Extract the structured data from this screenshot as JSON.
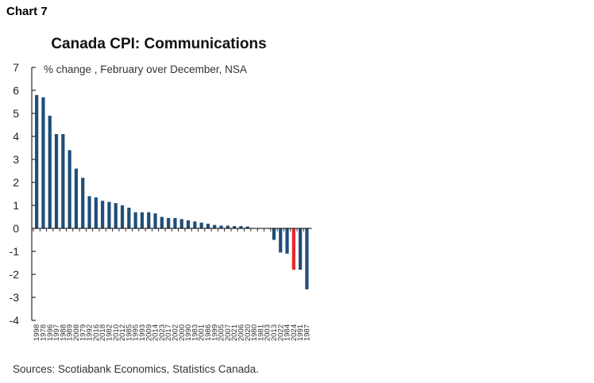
{
  "chart_label": "Chart 7",
  "source": "Sources: Scotiabank Economics, Statistics Canada.",
  "colors": {
    "bar": "#1f4e79",
    "highlight": "#e8262b",
    "axis": "#000000",
    "text": "#222222"
  },
  "chart_data": {
    "type": "bar",
    "title": "Canada CPI: Communications",
    "subtitle": "% change , February over December, NSA",
    "xlabel": "",
    "ylabel": "",
    "ylim": [
      -4,
      7
    ],
    "yticks": [
      7,
      6,
      5,
      4,
      3,
      2,
      1,
      0,
      -1,
      -2,
      -3,
      -4
    ],
    "grid": false,
    "highlight_category": "2024",
    "categories": [
      "1998",
      "1978",
      "1996",
      "1997",
      "1988",
      "1989",
      "2008",
      "1979",
      "1992",
      "2016",
      "2018",
      "1982",
      "2010",
      "2012",
      "1985",
      "1995",
      "1993",
      "2009",
      "2014",
      "2023",
      "2017",
      "2002",
      "2000",
      "1990",
      "1983",
      "2001",
      "1986",
      "1999",
      "2005",
      "2007",
      "2021",
      "2006",
      "2020",
      "1980",
      "1981",
      "2003",
      "2013",
      "2022",
      "1984",
      "2024",
      "1991",
      "1987"
    ],
    "values": [
      5.8,
      5.7,
      4.9,
      4.1,
      4.1,
      3.4,
      2.6,
      2.2,
      1.4,
      1.35,
      1.2,
      1.15,
      1.1,
      1.0,
      0.9,
      0.7,
      0.7,
      0.7,
      0.65,
      0.5,
      0.45,
      0.45,
      0.4,
      0.35,
      0.3,
      0.25,
      0.2,
      0.15,
      0.12,
      0.12,
      0.1,
      0.1,
      0.08,
      0.0,
      0.0,
      0.0,
      -0.5,
      -1.05,
      -1.1,
      -1.8,
      -1.8,
      -2.65
    ]
  }
}
